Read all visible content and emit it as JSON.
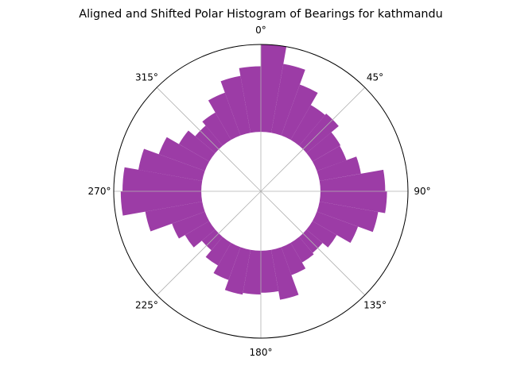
{
  "chart_data": {
    "type": "polar_bar",
    "title": "Aligned and Shifted Polar Histogram of Bearings for kathmandu",
    "theta_tick_labels": [
      "0°",
      "45°",
      "90°",
      "135°",
      "180°",
      "225°",
      "270°",
      "315°"
    ],
    "theta_ticks_deg": [
      0,
      45,
      90,
      135,
      180,
      225,
      270,
      315
    ],
    "theta_zero_location": "N",
    "theta_direction": "clockwise",
    "radial_ticks_visible": false,
    "grid": true,
    "bar_color": "#8B1A96",
    "bar_alpha": 0.85,
    "inner_radius_fraction": 0.405,
    "bins": 36,
    "bin_width_deg": 10,
    "bar_centers_deg": [
      5,
      15,
      25,
      35,
      45,
      55,
      65,
      75,
      85,
      95,
      105,
      115,
      125,
      135,
      145,
      155,
      165,
      175,
      185,
      195,
      205,
      215,
      225,
      235,
      245,
      255,
      265,
      275,
      285,
      295,
      305,
      315,
      325,
      335,
      345,
      355
    ],
    "values": [
      1.0,
      0.8,
      0.62,
      0.46,
      0.48,
      0.37,
      0.36,
      0.48,
      0.74,
      0.76,
      0.68,
      0.5,
      0.32,
      0.24,
      0.26,
      0.34,
      0.58,
      0.48,
      0.5,
      0.52,
      0.4,
      0.3,
      0.2,
      0.32,
      0.4,
      0.66,
      0.92,
      0.9,
      0.74,
      0.56,
      0.4,
      0.3,
      0.36,
      0.52,
      0.66,
      0.75
    ]
  }
}
